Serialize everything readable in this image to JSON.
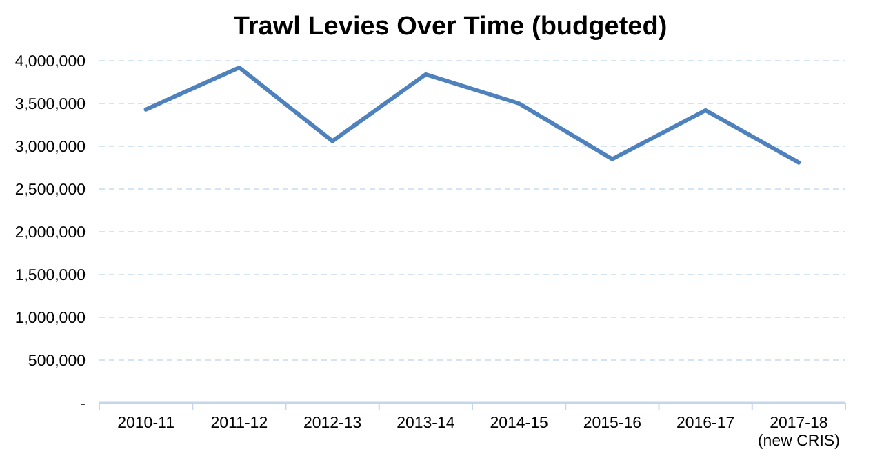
{
  "chart_data": {
    "type": "line",
    "title": "Trawl Levies Over Time (budgeted)",
    "categories": [
      "2010-11",
      "2011-12",
      "2012-13",
      "2013-14",
      "2014-15",
      "2015-16",
      "2016-17",
      "2017-18\n(new CRIS)"
    ],
    "series": [
      {
        "color": "#4f81bd",
        "values": [
          3430000,
          3920000,
          3060000,
          3840000,
          3500000,
          2850000,
          3420000,
          2810000
        ]
      }
    ],
    "ylim": [
      0,
      4000000
    ],
    "yticks": [
      {
        "value": 0,
        "label": "-"
      },
      {
        "value": 500000,
        "label": "500,000"
      },
      {
        "value": 1000000,
        "label": "1,000,000"
      },
      {
        "value": 1500000,
        "label": "1,500,000"
      },
      {
        "value": 2000000,
        "label": "2,000,000"
      },
      {
        "value": 2500000,
        "label": "2,500,000"
      },
      {
        "value": 3000000,
        "label": "3,000,000"
      },
      {
        "value": 3500000,
        "label": "3,500,000"
      },
      {
        "value": 4000000,
        "label": "4,000,000"
      }
    ],
    "grid": "y",
    "marker": "none",
    "line_style": "solid"
  }
}
